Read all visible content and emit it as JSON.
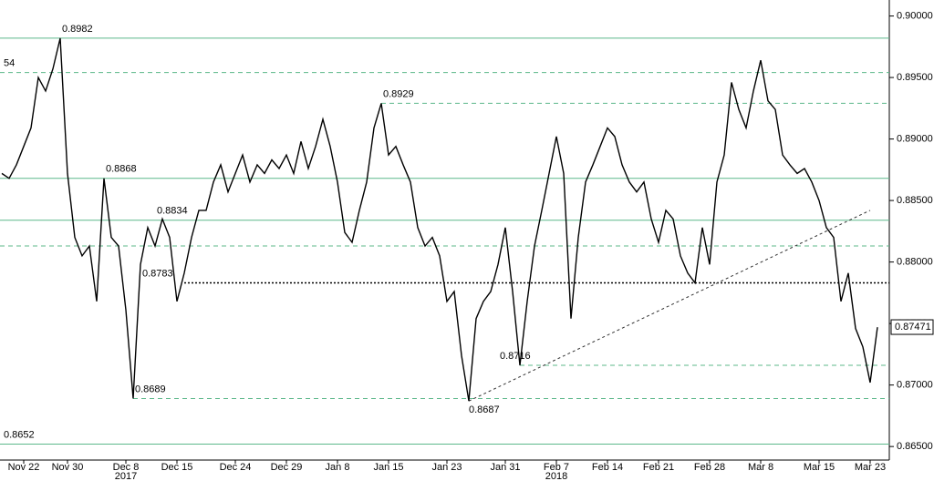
{
  "chart_data": {
    "type": "line",
    "categories": [
      null,
      null,
      null,
      "Nov 22",
      null,
      null,
      null,
      null,
      null,
      "Nov 30",
      null,
      null,
      null,
      null,
      null,
      null,
      null,
      "Dec 8",
      null,
      null,
      null,
      null,
      null,
      null,
      "Dec 15",
      null,
      null,
      null,
      null,
      null,
      null,
      null,
      "Dec 24",
      null,
      null,
      null,
      null,
      null,
      null,
      "Dec 29",
      null,
      null,
      null,
      null,
      null,
      null,
      "Jan 8",
      null,
      null,
      null,
      null,
      null,
      null,
      "Jan 15",
      null,
      null,
      null,
      null,
      null,
      null,
      null,
      "Jan 23",
      null,
      null,
      null,
      null,
      null,
      null,
      null,
      "Jan 31",
      null,
      null,
      null,
      null,
      null,
      null,
      "Feb 7",
      null,
      null,
      null,
      null,
      null,
      null,
      "Feb 14",
      null,
      null,
      null,
      null,
      null,
      null,
      "Feb 21",
      null,
      null,
      null,
      null,
      null,
      null,
      "Feb 28",
      null,
      null,
      null,
      null,
      null,
      null,
      "Mar 8",
      null,
      null,
      null,
      null,
      null,
      null,
      null,
      "Mar 15",
      null,
      null,
      null,
      null,
      null,
      null,
      "Mar 23",
      null
    ],
    "years": [
      {
        "label": "2017",
        "category": 17
      },
      {
        "label": "2018",
        "category": 76
      }
    ],
    "series": [
      {
        "color": "#000000",
        "values": [
          0.8872,
          0.8868,
          0.8879,
          0.8894,
          0.8909,
          0.895,
          0.8939,
          0.8957,
          0.8982,
          0.8872,
          0.882,
          0.8805,
          0.8813,
          0.8768,
          0.8868,
          0.882,
          0.8813,
          0.8761,
          0.8689,
          0.8798,
          0.8828,
          0.8813,
          0.8835,
          0.882,
          0.8768,
          0.8791,
          0.882,
          0.8842,
          0.8842,
          0.8865,
          0.8879,
          0.8857,
          0.8872,
          0.8887,
          0.8865,
          0.8879,
          0.8872,
          0.8883,
          0.8876,
          0.8887,
          0.8872,
          0.8898,
          0.8876,
          0.8894,
          0.8916,
          0.8894,
          0.8865,
          0.8824,
          0.8816,
          0.8842,
          0.8865,
          0.8909,
          0.8929,
          0.8887,
          0.8894,
          0.8879,
          0.8865,
          0.8828,
          0.8813,
          0.882,
          0.8805,
          0.8768,
          0.8776,
          0.8724,
          0.8687,
          0.8754,
          0.8768,
          0.8776,
          0.8798,
          0.8828,
          0.8776,
          0.8716,
          0.8768,
          0.8813,
          0.8842,
          0.8872,
          0.8902,
          0.8872,
          0.8754,
          0.882,
          0.8865,
          0.8879,
          0.8894,
          0.8909,
          0.8902,
          0.8879,
          0.8865,
          0.8857,
          0.8865,
          0.8835,
          0.8816,
          0.8842,
          0.8835,
          0.8805,
          0.8791,
          0.8783,
          0.8828,
          0.8798,
          0.8865,
          0.8887,
          0.8946,
          0.8924,
          0.8909,
          0.8939,
          0.8964,
          0.8931,
          0.8924,
          0.8887,
          0.8879,
          0.8872,
          0.8876,
          0.8865,
          0.885,
          0.8828,
          0.882,
          0.8768,
          0.8791,
          0.8746,
          0.8731,
          0.8702,
          0.8747
        ]
      }
    ],
    "last_price": 0.87471,
    "levels": [
      {
        "value": 0.8982,
        "style": "solid",
        "label_at": 8
      },
      {
        "value": 0.8954,
        "style": "dashed",
        "label": "54",
        "label_at": 0
      },
      {
        "value": 0.8929,
        "style": "dashed",
        "start": 52,
        "label_at": 52
      },
      {
        "value": 0.8868,
        "style": "solid",
        "label_at": 14
      },
      {
        "value": 0.8834,
        "style": "solid",
        "label_at": 21
      },
      {
        "value": 0.8813,
        "style": "dashed"
      },
      {
        "value": 0.8783,
        "style": "dotted",
        "start": 25,
        "label_at": 19
      },
      {
        "value": 0.8716,
        "style": "dashed",
        "start": 71,
        "label_at": 68
      },
      {
        "value": 0.8689,
        "style": "dashed",
        "start": 18,
        "label_at": 18
      },
      {
        "value": 0.8652,
        "style": "solid",
        "label_at": 0
      }
    ],
    "annotations": [
      {
        "value": 0.8687,
        "category": 64
      }
    ],
    "trendline": {
      "from": 64,
      "to": 119,
      "values": [
        0.8687,
        0.8842
      ]
    },
    "ylim": [
      0.8639,
      0.9013
    ],
    "yticks": [
      {
        "value": 0.865,
        "label": "0.86500"
      },
      {
        "value": 0.87,
        "label": "0.87000"
      },
      {
        "value": 0.875,
        "label": "0.87500"
      },
      {
        "value": 0.88,
        "label": "0.88000"
      },
      {
        "value": 0.885,
        "label": "0.88500"
      },
      {
        "value": 0.89,
        "label": "0.89000"
      },
      {
        "value": 0.895,
        "label": "0.89500"
      },
      {
        "value": 0.9,
        "label": "0.90000"
      }
    ]
  }
}
